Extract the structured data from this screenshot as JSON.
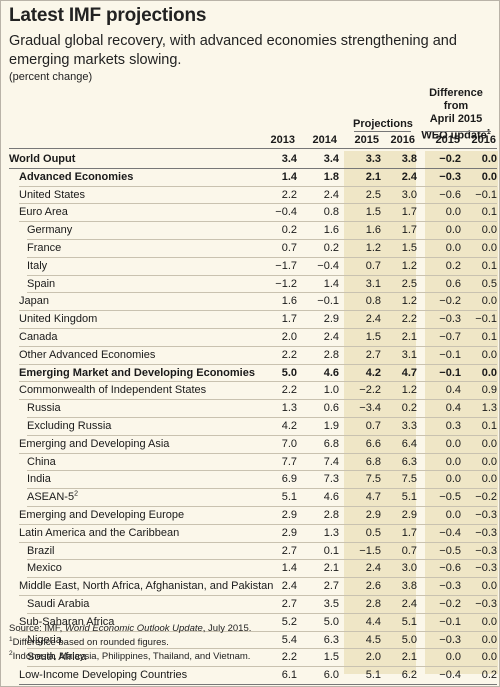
{
  "title": "Latest IMF projections",
  "subtitle": "Gradual global recovery, with advanced economies strengthening and emerging markets slowing.",
  "unit": "(percent change)",
  "header": {
    "projections_label": "Projections",
    "difference_line1": "Difference from",
    "difference_line2": "April 2015",
    "difference_line3": "WEO update",
    "difference_sup": "1",
    "years": [
      "2013",
      "2014",
      "2015",
      "2016",
      "2015",
      "2016"
    ]
  },
  "rows": [
    {
      "label": "World Ouput",
      "indent": 0,
      "bold": true,
      "values": [
        "3.4",
        "3.4",
        "3.3",
        "3.8",
        "−0.2",
        "0.0"
      ]
    },
    {
      "label": "Advanced Economies",
      "indent": 1,
      "bold": true,
      "values": [
        "1.4",
        "1.8",
        "2.1",
        "2.4",
        "−0.3",
        "0.0"
      ]
    },
    {
      "label": "United States",
      "indent": 1,
      "bold": false,
      "values": [
        "2.2",
        "2.4",
        "2.5",
        "3.0",
        "−0.6",
        "−0.1"
      ]
    },
    {
      "label": "Euro Area",
      "indent": 1,
      "bold": false,
      "values": [
        "−0.4",
        "0.8",
        "1.5",
        "1.7",
        "0.0",
        "0.1"
      ]
    },
    {
      "label": "Germany",
      "indent": 2,
      "bold": false,
      "values": [
        "0.2",
        "1.6",
        "1.6",
        "1.7",
        "0.0",
        "0.0"
      ]
    },
    {
      "label": "France",
      "indent": 2,
      "bold": false,
      "values": [
        "0.7",
        "0.2",
        "1.2",
        "1.5",
        "0.0",
        "0.0"
      ]
    },
    {
      "label": "Italy",
      "indent": 2,
      "bold": false,
      "values": [
        "−1.7",
        "−0.4",
        "0.7",
        "1.2",
        "0.2",
        "0.1"
      ]
    },
    {
      "label": "Spain",
      "indent": 2,
      "bold": false,
      "values": [
        "−1.2",
        "1.4",
        "3.1",
        "2.5",
        "0.6",
        "0.5"
      ]
    },
    {
      "label": "Japan",
      "indent": 1,
      "bold": false,
      "values": [
        "1.6",
        "−0.1",
        "0.8",
        "1.2",
        "−0.2",
        "0.0"
      ]
    },
    {
      "label": "United Kingdom",
      "indent": 1,
      "bold": false,
      "values": [
        "1.7",
        "2.9",
        "2.4",
        "2.2",
        "−0.3",
        "−0.1"
      ]
    },
    {
      "label": "Canada",
      "indent": 1,
      "bold": false,
      "values": [
        "2.0",
        "2.4",
        "1.5",
        "2.1",
        "−0.7",
        "0.1"
      ]
    },
    {
      "label": "Other Advanced Economies",
      "indent": 1,
      "bold": false,
      "values": [
        "2.2",
        "2.8",
        "2.7",
        "3.1",
        "−0.1",
        "0.0"
      ]
    },
    {
      "label": "Emerging Market and Developing Economies",
      "indent": 1,
      "bold": true,
      "values": [
        "5.0",
        "4.6",
        "4.2",
        "4.7",
        "−0.1",
        "0.0"
      ]
    },
    {
      "label": "Commonwealth of Independent States",
      "indent": 1,
      "bold": false,
      "values": [
        "2.2",
        "1.0",
        "−2.2",
        "1.2",
        "0.4",
        "0.9"
      ]
    },
    {
      "label": "Russia",
      "indent": 2,
      "bold": false,
      "values": [
        "1.3",
        "0.6",
        "−3.4",
        "0.2",
        "0.4",
        "1.3"
      ]
    },
    {
      "label": "Excluding Russia",
      "indent": 2,
      "bold": false,
      "values": [
        "4.2",
        "1.9",
        "0.7",
        "3.3",
        "0.3",
        "0.1"
      ]
    },
    {
      "label": "Emerging and Developing Asia",
      "indent": 1,
      "bold": false,
      "values": [
        "7.0",
        "6.8",
        "6.6",
        "6.4",
        "0.0",
        "0.0"
      ]
    },
    {
      "label": "China",
      "indent": 2,
      "bold": false,
      "values": [
        "7.7",
        "7.4",
        "6.8",
        "6.3",
        "0.0",
        "0.0"
      ]
    },
    {
      "label": "India",
      "indent": 2,
      "bold": false,
      "values": [
        "6.9",
        "7.3",
        "7.5",
        "7.5",
        "0.0",
        "0.0"
      ]
    },
    {
      "label": "ASEAN-5",
      "sup": "2",
      "indent": 2,
      "bold": false,
      "values": [
        "5.1",
        "4.6",
        "4.7",
        "5.1",
        "−0.5",
        "−0.2"
      ]
    },
    {
      "label": "Emerging and Developing Europe",
      "indent": 1,
      "bold": false,
      "values": [
        "2.9",
        "2.8",
        "2.9",
        "2.9",
        "0.0",
        "−0.3"
      ]
    },
    {
      "label": "Latin America and the Caribbean",
      "indent": 1,
      "bold": false,
      "values": [
        "2.9",
        "1.3",
        "0.5",
        "1.7",
        "−0.4",
        "−0.3"
      ]
    },
    {
      "label": "Brazil",
      "indent": 2,
      "bold": false,
      "values": [
        "2.7",
        "0.1",
        "−1.5",
        "0.7",
        "−0.5",
        "−0.3"
      ]
    },
    {
      "label": "Mexico",
      "indent": 2,
      "bold": false,
      "values": [
        "1.4",
        "2.1",
        "2.4",
        "3.0",
        "−0.6",
        "−0.3"
      ]
    },
    {
      "label": "Middle East, North Africa, Afghanistan, and Pakistan",
      "indent": 1,
      "bold": false,
      "values": [
        "2.4",
        "2.7",
        "2.6",
        "3.8",
        "−0.3",
        "0.0"
      ]
    },
    {
      "label": "Saudi Arabia",
      "indent": 2,
      "bold": false,
      "values": [
        "2.7",
        "3.5",
        "2.8",
        "2.4",
        "−0.2",
        "−0.3"
      ]
    },
    {
      "label": "Sub-Saharan Africa",
      "indent": 1,
      "bold": false,
      "values": [
        "5.2",
        "5.0",
        "4.4",
        "5.1",
        "−0.1",
        "0.0"
      ]
    },
    {
      "label": "Nigeria",
      "indent": 2,
      "bold": false,
      "values": [
        "5.4",
        "6.3",
        "4.5",
        "5.0",
        "−0.3",
        "0.0"
      ]
    },
    {
      "label": "South Africa",
      "indent": 2,
      "bold": false,
      "values": [
        "2.2",
        "1.5",
        "2.0",
        "2.1",
        "0.0",
        "0.0"
      ]
    },
    {
      "label": "Low-Income Developing Countries",
      "indent": 1,
      "bold": false,
      "values": [
        "6.1",
        "6.0",
        "5.1",
        "6.2",
        "−0.4",
        "0.2"
      ]
    }
  ],
  "notes": {
    "source_prefix": "Source: IMF, ",
    "source_title": "World Economic Outlook Update",
    "source_suffix": ", July 2015.",
    "note1_sup": "1",
    "note1": "Difference based on rounded figures.",
    "note2_sup": "2",
    "note2": "Indonesia, Malaysia, Philippines, Thailand, and Vietnam."
  },
  "colors": {
    "panel_bg": "#fbf7ea",
    "projection_shade": "#efe6c6",
    "border": "#b9b3a8"
  }
}
